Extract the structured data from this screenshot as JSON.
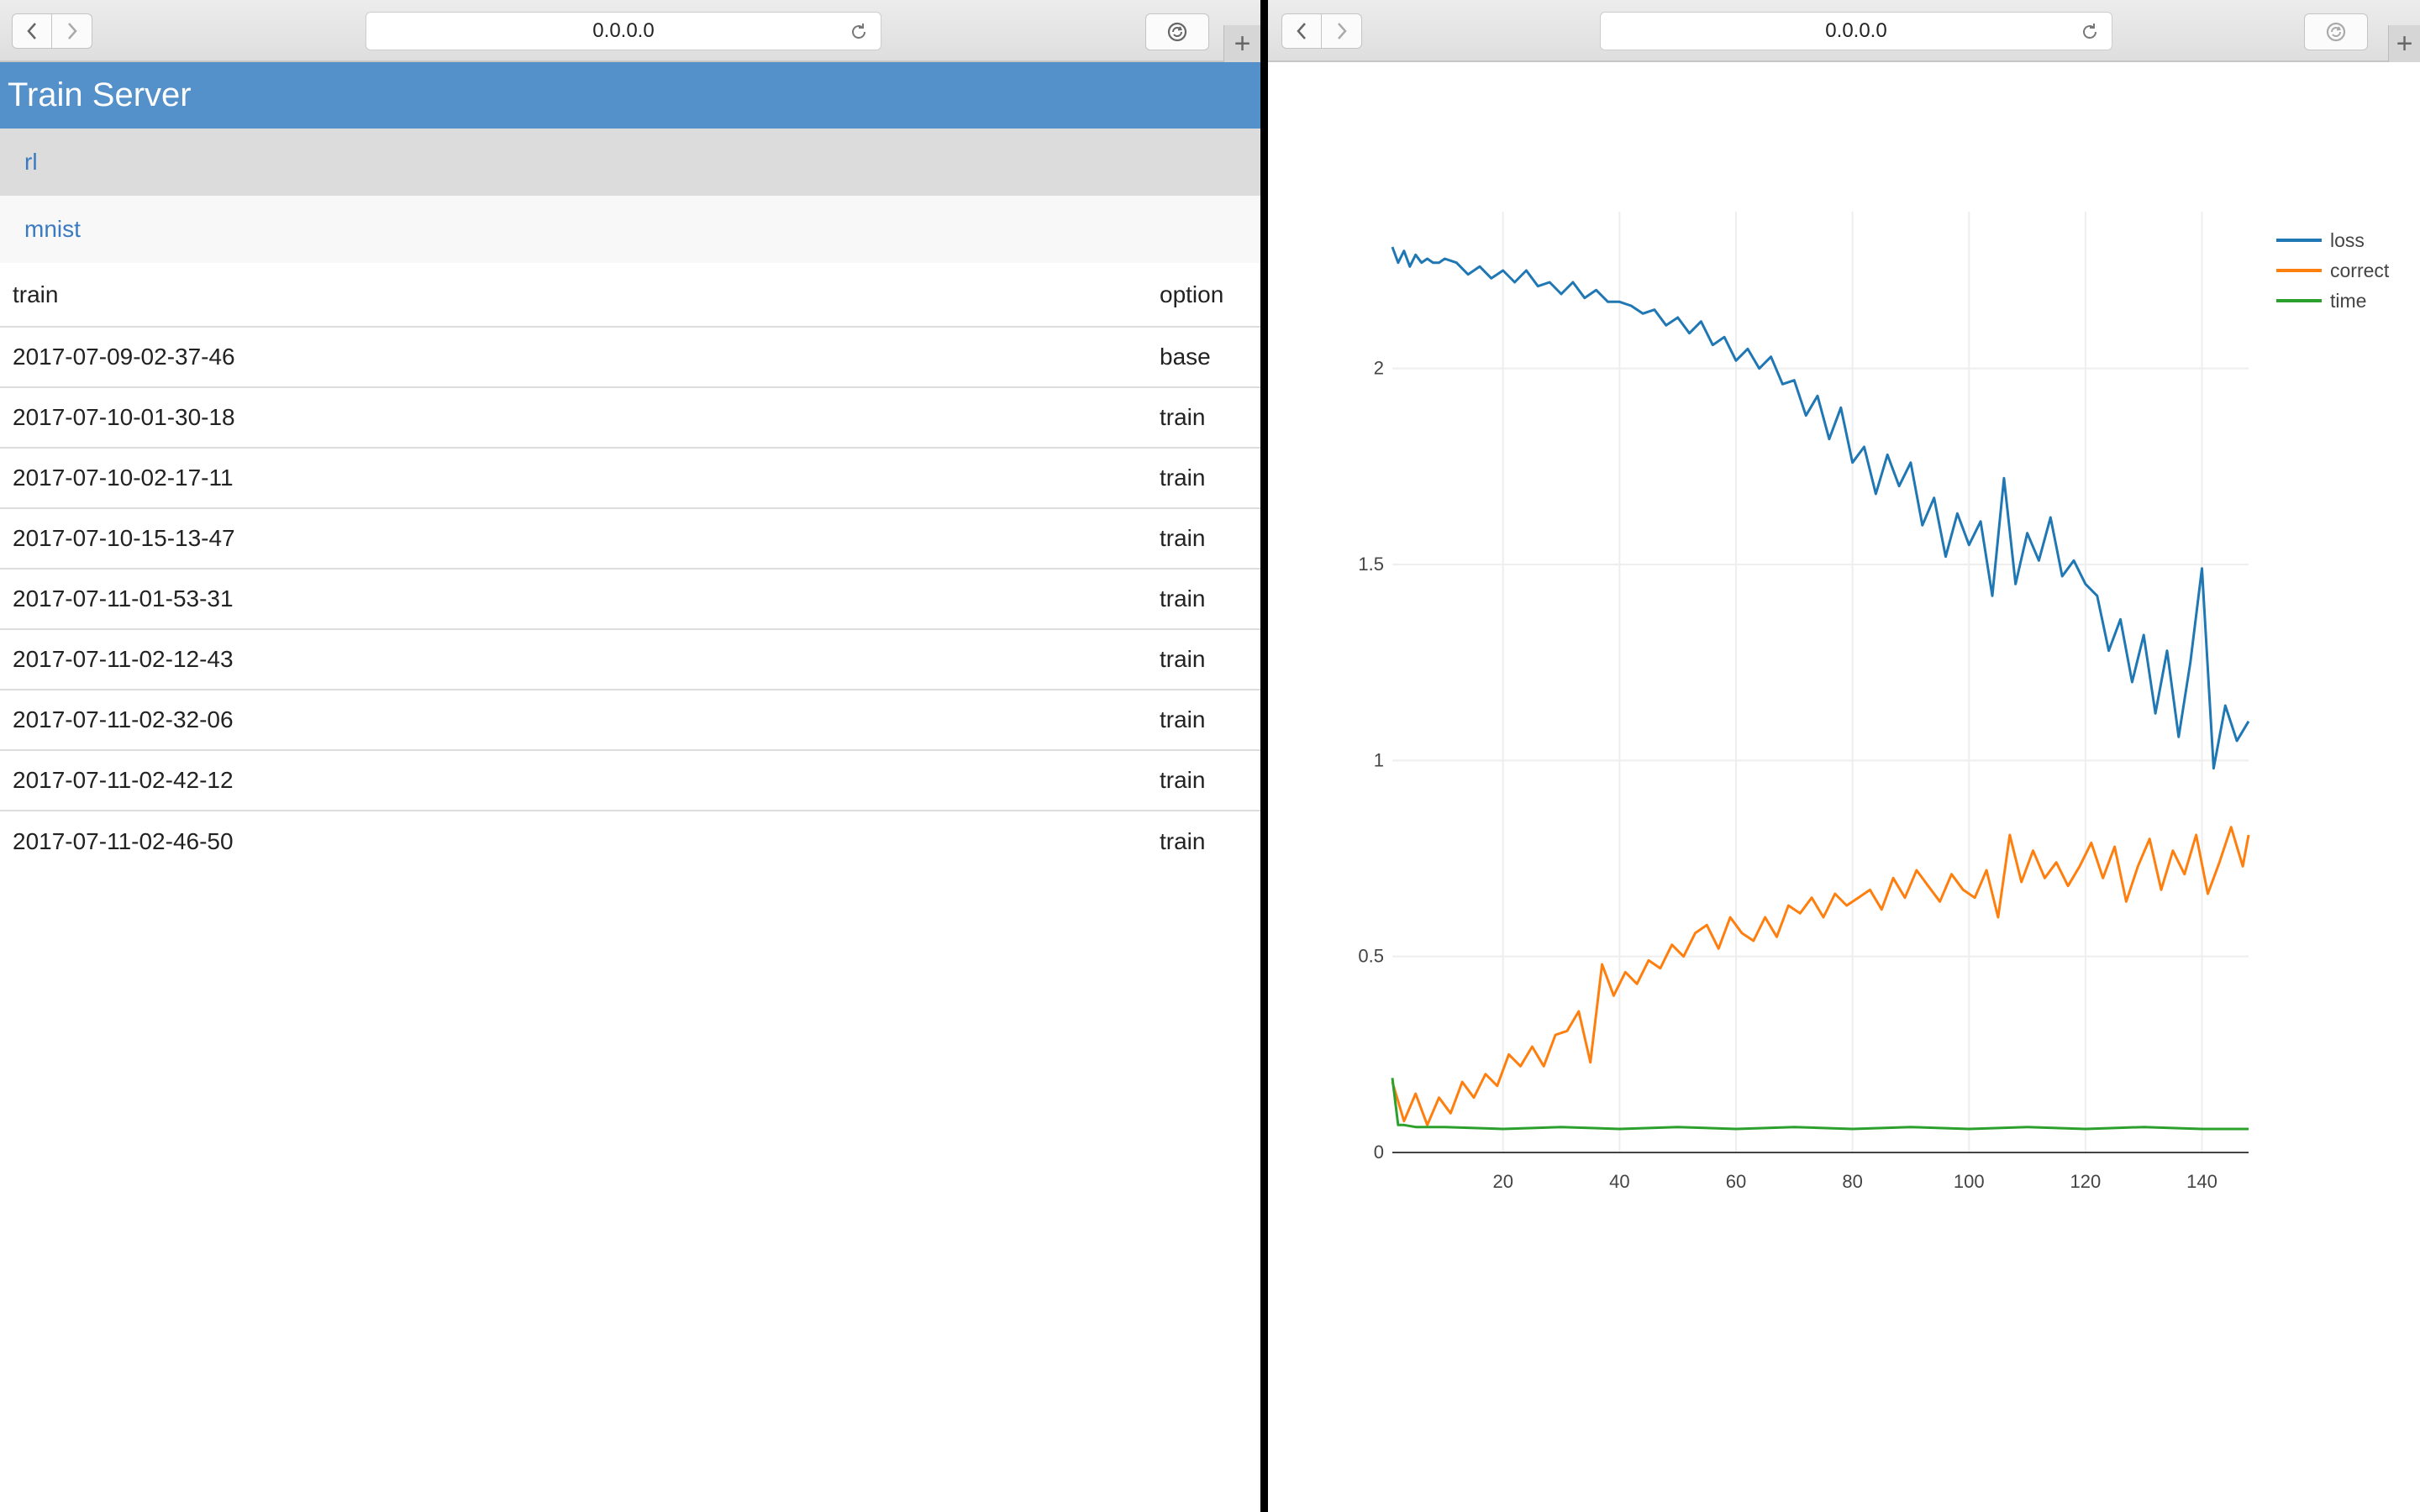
{
  "left_window": {
    "address": "0.0.0.0",
    "header_title": "Train Server",
    "projects": [
      {
        "label": "rl",
        "active": true
      },
      {
        "label": "mnist",
        "active": false
      }
    ],
    "table": {
      "headers": {
        "train": "train",
        "option": "option"
      },
      "rows": [
        {
          "train": "2017-07-09-02-37-46",
          "option": "base"
        },
        {
          "train": "2017-07-10-01-30-18",
          "option": "train"
        },
        {
          "train": "2017-07-10-02-17-11",
          "option": "train"
        },
        {
          "train": "2017-07-10-15-13-47",
          "option": "train"
        },
        {
          "train": "2017-07-11-01-53-31",
          "option": "train"
        },
        {
          "train": "2017-07-11-02-12-43",
          "option": "train"
        },
        {
          "train": "2017-07-11-02-32-06",
          "option": "train"
        },
        {
          "train": "2017-07-11-02-42-12",
          "option": "train"
        },
        {
          "train": "2017-07-11-02-46-50",
          "option": "train"
        }
      ]
    }
  },
  "right_window": {
    "address": "0.0.0.0"
  },
  "icons": {
    "back": "chevron-left-icon",
    "forward": "chevron-right-icon",
    "reload": "reload-icon",
    "sync": "sync-icon",
    "new_tab": "plus-icon"
  },
  "colors": {
    "header_bg": "#5490c9",
    "link": "#3a7ac0",
    "loss": "#1f77b4",
    "correct": "#ff7f0e",
    "time": "#2ca02c"
  },
  "chart_data": {
    "type": "line",
    "title": "",
    "xlabel": "",
    "ylabel": "",
    "xlim": [
      1,
      148
    ],
    "ylim": [
      0,
      2.4
    ],
    "xticks": [
      "20",
      "40",
      "60",
      "80",
      "100",
      "120",
      "140"
    ],
    "yticks": [
      "0",
      "0.5",
      "1",
      "1.5",
      "2"
    ],
    "grid": true,
    "legend_position": "top-right",
    "series": [
      {
        "name": "loss",
        "color": "#1f77b4",
        "x": [
          1,
          2,
          3,
          4,
          5,
          6,
          7,
          8,
          9,
          10,
          12,
          14,
          16,
          18,
          20,
          22,
          24,
          26,
          28,
          30,
          32,
          34,
          36,
          38,
          40,
          42,
          44,
          46,
          48,
          50,
          52,
          54,
          56,
          58,
          60,
          62,
          64,
          66,
          68,
          70,
          72,
          74,
          76,
          78,
          80,
          82,
          84,
          86,
          88,
          90,
          92,
          94,
          96,
          98,
          100,
          102,
          104,
          106,
          108,
          110,
          112,
          114,
          116,
          118,
          120,
          122,
          124,
          126,
          128,
          130,
          132,
          134,
          136,
          138,
          140,
          142,
          144,
          146,
          148
        ],
        "values": [
          2.31,
          2.27,
          2.3,
          2.26,
          2.29,
          2.27,
          2.28,
          2.27,
          2.27,
          2.28,
          2.27,
          2.24,
          2.26,
          2.23,
          2.25,
          2.22,
          2.25,
          2.21,
          2.22,
          2.19,
          2.22,
          2.18,
          2.2,
          2.17,
          2.17,
          2.16,
          2.14,
          2.15,
          2.11,
          2.13,
          2.09,
          2.12,
          2.06,
          2.08,
          2.02,
          2.05,
          2.0,
          2.03,
          1.96,
          1.97,
          1.88,
          1.93,
          1.82,
          1.9,
          1.76,
          1.8,
          1.68,
          1.78,
          1.7,
          1.76,
          1.6,
          1.67,
          1.52,
          1.63,
          1.55,
          1.61,
          1.42,
          1.72,
          1.45,
          1.58,
          1.51,
          1.62,
          1.47,
          1.51,
          1.45,
          1.42,
          1.28,
          1.36,
          1.2,
          1.32,
          1.12,
          1.28,
          1.06,
          1.25,
          1.49,
          0.98,
          1.14,
          1.05,
          1.1
        ]
      },
      {
        "name": "correct",
        "color": "#ff7f0e",
        "x": [
          1,
          3,
          5,
          7,
          9,
          11,
          13,
          15,
          17,
          19,
          21,
          23,
          25,
          27,
          29,
          31,
          33,
          35,
          37,
          39,
          41,
          43,
          45,
          47,
          49,
          51,
          53,
          55,
          57,
          59,
          61,
          63,
          65,
          67,
          69,
          71,
          73,
          75,
          77,
          79,
          81,
          83,
          85,
          87,
          89,
          91,
          93,
          95,
          97,
          99,
          101,
          103,
          105,
          107,
          109,
          111,
          113,
          115,
          117,
          119,
          121,
          123,
          125,
          127,
          129,
          131,
          133,
          135,
          137,
          139,
          141,
          143,
          145,
          147,
          148
        ],
        "values": [
          0.18,
          0.08,
          0.15,
          0.07,
          0.14,
          0.1,
          0.18,
          0.14,
          0.2,
          0.17,
          0.25,
          0.22,
          0.27,
          0.22,
          0.3,
          0.31,
          0.36,
          0.23,
          0.48,
          0.4,
          0.46,
          0.43,
          0.49,
          0.47,
          0.53,
          0.5,
          0.56,
          0.58,
          0.52,
          0.6,
          0.56,
          0.54,
          0.6,
          0.55,
          0.63,
          0.61,
          0.65,
          0.6,
          0.66,
          0.63,
          0.65,
          0.67,
          0.62,
          0.7,
          0.65,
          0.72,
          0.68,
          0.64,
          0.71,
          0.67,
          0.65,
          0.72,
          0.6,
          0.81,
          0.69,
          0.77,
          0.7,
          0.74,
          0.68,
          0.73,
          0.79,
          0.7,
          0.78,
          0.64,
          0.73,
          0.8,
          0.67,
          0.77,
          0.71,
          0.81,
          0.66,
          0.74,
          0.83,
          0.73,
          0.81
        ]
      },
      {
        "name": "time",
        "color": "#2ca02c",
        "x": [
          1,
          2,
          3,
          5,
          10,
          20,
          30,
          40,
          50,
          60,
          70,
          80,
          90,
          100,
          110,
          120,
          130,
          140,
          148
        ],
        "values": [
          0.19,
          0.07,
          0.07,
          0.065,
          0.065,
          0.06,
          0.065,
          0.06,
          0.065,
          0.06,
          0.065,
          0.06,
          0.065,
          0.06,
          0.065,
          0.06,
          0.065,
          0.06,
          0.06
        ]
      }
    ]
  }
}
